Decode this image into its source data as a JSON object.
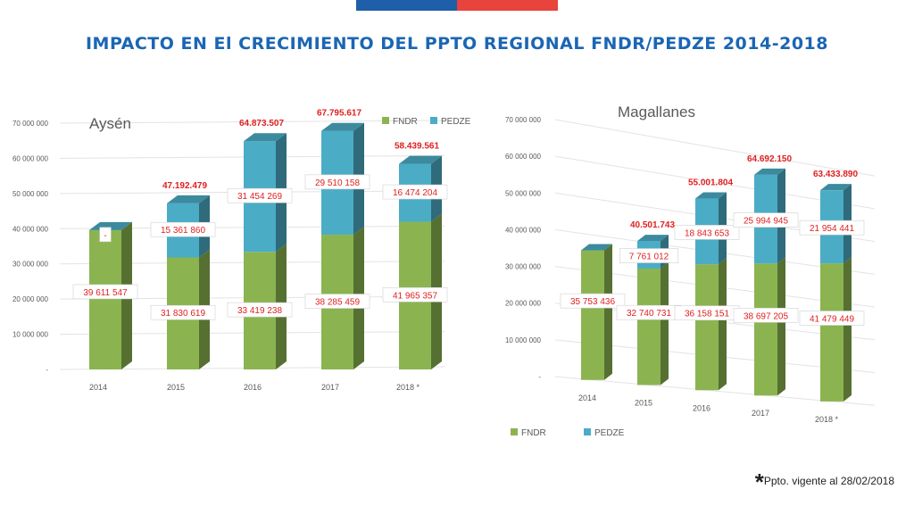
{
  "header": {
    "title": "IMPACTO EN El CRECIMIENTO DEL PPTO REGIONAL FNDR/PEDZE 2014-2018"
  },
  "footnote": {
    "star": "*",
    "text": "Ppto. vigente al 28/02/2018"
  },
  "colors": {
    "fndr": "#8bb450",
    "pedze": "#4bacc6",
    "title": "#1b66b3",
    "value_label": "#e02020",
    "flag_blue": "#1f5ea8",
    "flag_red": "#e8433c"
  },
  "chart_data": [
    {
      "type": "bar",
      "stacked": true,
      "title": "Aysén",
      "categories": [
        "2014",
        "2015",
        "2016",
        "2017",
        "2018 *"
      ],
      "series": [
        {
          "name": "FNDR",
          "values": [
            39611547,
            31830619,
            33419238,
            38285459,
            41965357
          ],
          "labels": [
            "39 611 547",
            "31 830 619",
            "33 419 238",
            "38 285 459",
            "41 965 357"
          ]
        },
        {
          "name": "PEDZE",
          "values": [
            0,
            15361860,
            31454269,
            29510158,
            16474204
          ],
          "labels": [
            "-",
            "15 361 860",
            "31 454 269",
            "29 510 158",
            "16 474 204"
          ]
        }
      ],
      "totals": [
        "",
        "47.192.479",
        "64.873.507",
        "67.795.617",
        "58.439.561"
      ],
      "y_ticks": [
        "-",
        "10 000 000",
        "20 000 000",
        "30 000 000",
        "40 000 000",
        "50 000 000",
        "60 000 000",
        "70 000 000"
      ],
      "ylim": [
        0,
        70000000
      ],
      "legend_position": "top-right"
    },
    {
      "type": "bar",
      "stacked": true,
      "title": "Magallanes",
      "categories": [
        "2014",
        "2015",
        "2016",
        "2017",
        "2018 *"
      ],
      "series": [
        {
          "name": "FNDR",
          "values": [
            35753436,
            32740731,
            36158151,
            38697205,
            41479449
          ],
          "labels": [
            "35 753 436",
            "32 740 731",
            "36 158 151",
            "38 697 205",
            "41 479 449"
          ]
        },
        {
          "name": "PEDZE",
          "values": [
            0,
            7761012,
            18843653,
            25994945,
            21954441
          ],
          "labels": [
            "",
            "7 761 012",
            "18 843 653",
            "25 994 945",
            "21 954 441"
          ]
        }
      ],
      "totals": [
        "",
        "40.501.743",
        "55.001.804",
        "64.692.150",
        "63.433.890"
      ],
      "y_ticks": [
        "-",
        "10 000 000",
        "20 000 000",
        "30 000 000",
        "40 000 000",
        "50 000 000",
        "60 000 000",
        "70 000 000"
      ],
      "ylim": [
        0,
        70000000
      ],
      "legend_position": "bottom-left"
    }
  ]
}
